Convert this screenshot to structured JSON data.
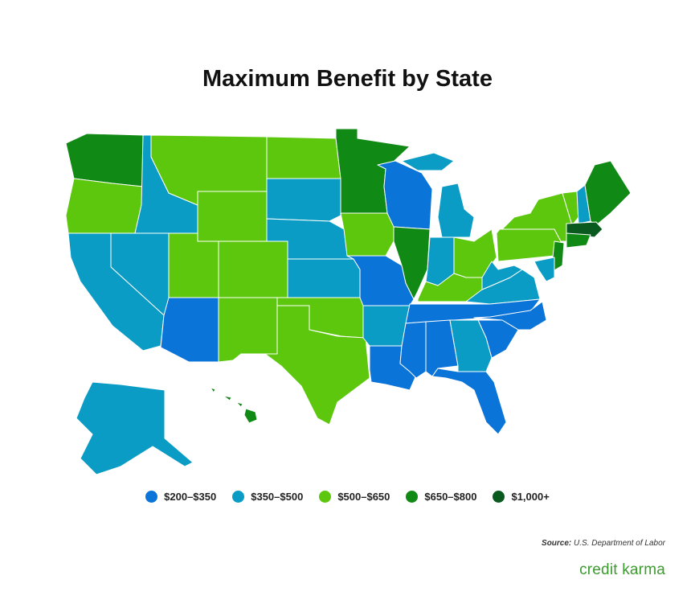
{
  "title": "Maximum Benefit by State",
  "legend": [
    {
      "label": "$200–$350",
      "color": "#0b74d8"
    },
    {
      "label": "$350–$500",
      "color": "#0a9cc4"
    },
    {
      "label": "$500–$650",
      "color": "#5cc70c"
    },
    {
      "label": "$650–$800",
      "color": "#108a15"
    },
    {
      "label": "$1,000+",
      "color": "#0a5a20"
    }
  ],
  "source": {
    "label": "Source:",
    "text": "U.S. Department of Labor"
  },
  "logo": "credit karma"
}
